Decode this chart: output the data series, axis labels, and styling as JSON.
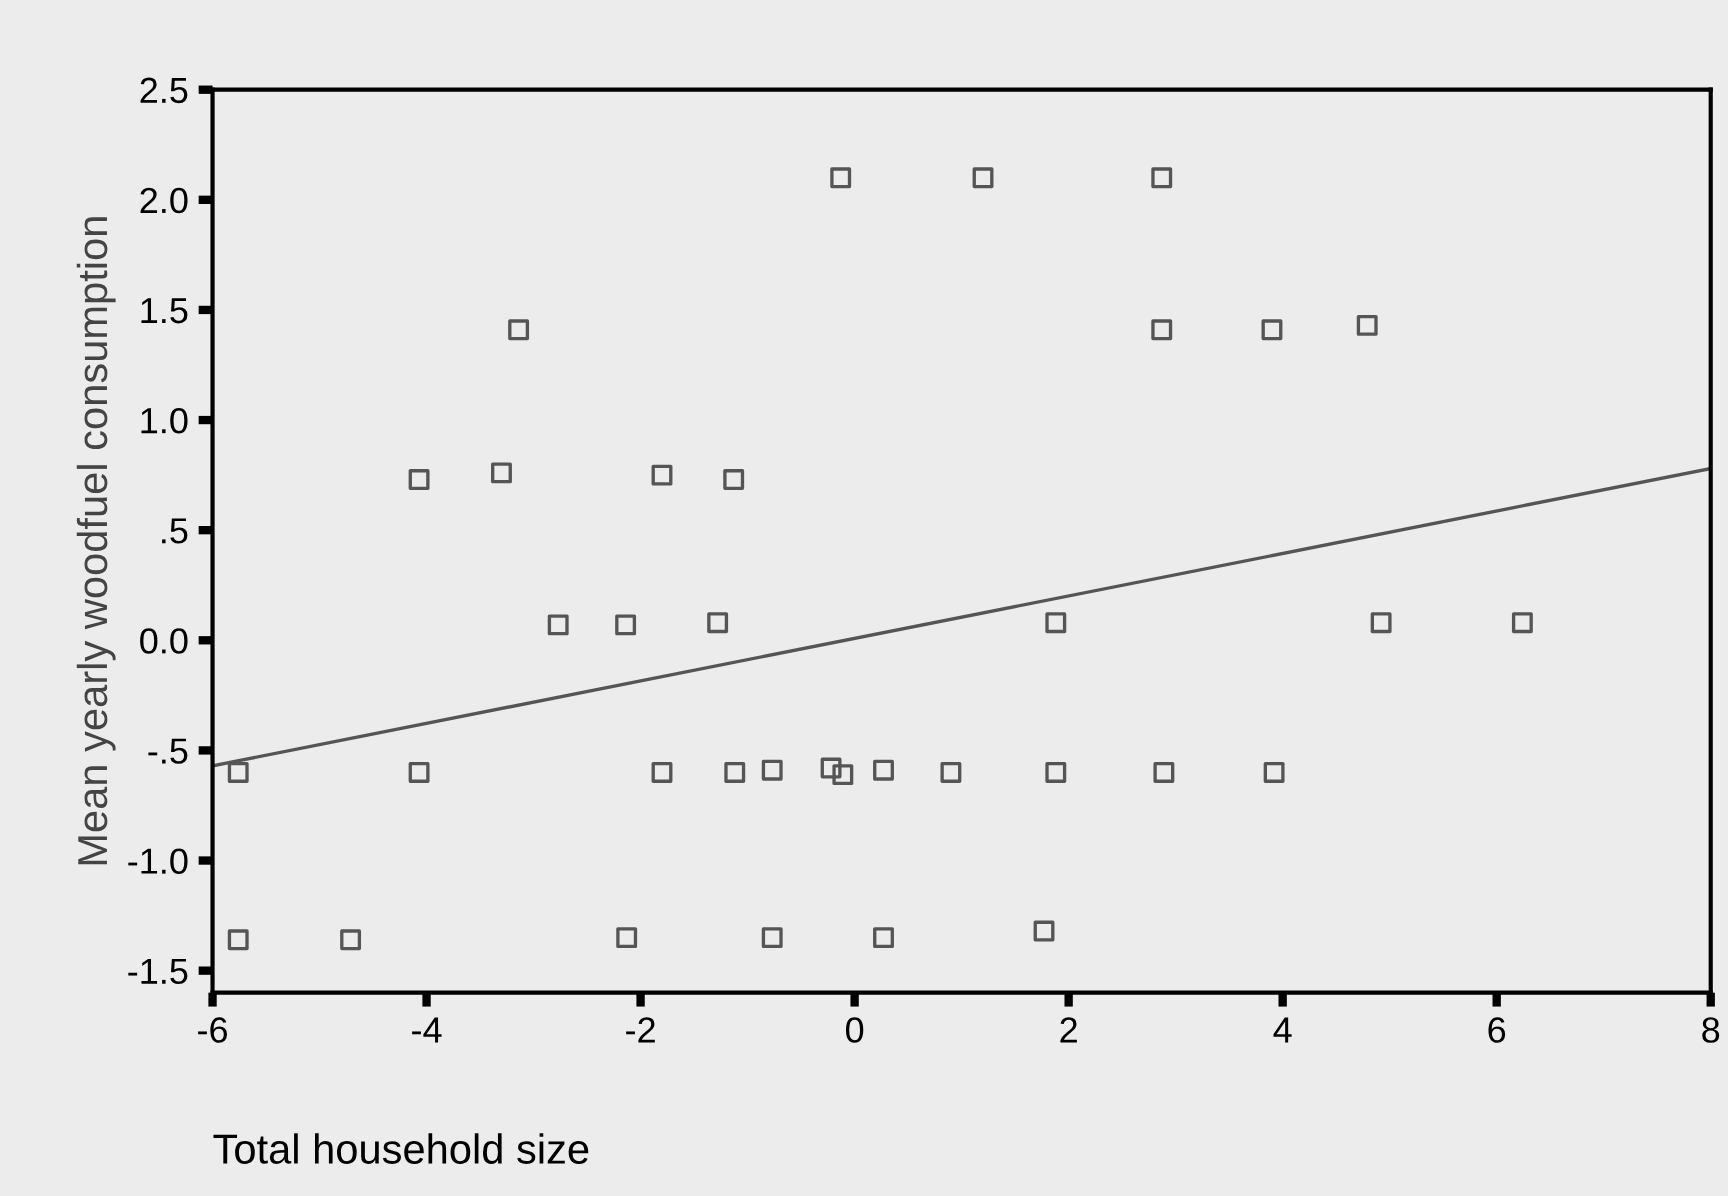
{
  "chart_data": {
    "type": "scatter",
    "xlabel": "Total household size",
    "ylabel": "Mean yearly woodfuel consumption",
    "xlim": [
      -6,
      8
    ],
    "xticks": [
      -6,
      -4,
      -2,
      0,
      2,
      4,
      6,
      8
    ],
    "ylim": [
      -1.6,
      2.5
    ],
    "yticks": [
      2.5,
      {
        "value": 2.0,
        "label": "2.0"
      },
      1.5,
      {
        "value": 1.0,
        "label": "1.0"
      },
      {
        "value": 0.5,
        "label": ".5"
      },
      {
        "value": 0.0,
        "label": "0.0"
      },
      {
        "value": -0.5,
        "label": "-.5"
      },
      {
        "value": -1.0,
        "label": "-1.0"
      },
      -1.5
    ],
    "grid": false,
    "legend": false,
    "marker": "square",
    "series": [
      {
        "color": "#555555",
        "x": [
          -0.13,
          1.2,
          2.87,
          -3.14,
          2.87,
          3.9,
          4.79,
          -4.07,
          -3.3,
          -1.8,
          -1.13,
          -2.77,
          -2.14,
          -1.28,
          1.88,
          4.92,
          6.24,
          -5.76,
          -4.07,
          -1.8,
          -1.12,
          -0.77,
          -0.22,
          -0.11,
          0.27,
          0.9,
          1.88,
          2.89,
          3.92,
          -5.76,
          -4.71,
          -2.13,
          -0.77,
          0.27,
          1.77
        ],
        "values": [
          2.1,
          2.1,
          2.1,
          1.41,
          1.41,
          1.41,
          1.43,
          0.73,
          0.76,
          0.75,
          0.73,
          0.07,
          0.07,
          0.08,
          0.08,
          0.08,
          0.08,
          -0.6,
          -0.6,
          -0.6,
          -0.6,
          -0.59,
          -0.58,
          -0.61,
          -0.59,
          -0.6,
          -0.6,
          -0.6,
          -0.6,
          -1.36,
          -1.36,
          -1.35,
          -1.35,
          -1.35,
          -1.32
        ]
      },
      {
        "type": "line",
        "color": "#555555",
        "marker": "none",
        "line_style": "solid",
        "x": [
          -6,
          8
        ],
        "values": [
          -0.57,
          0.78
        ]
      }
    ]
  }
}
